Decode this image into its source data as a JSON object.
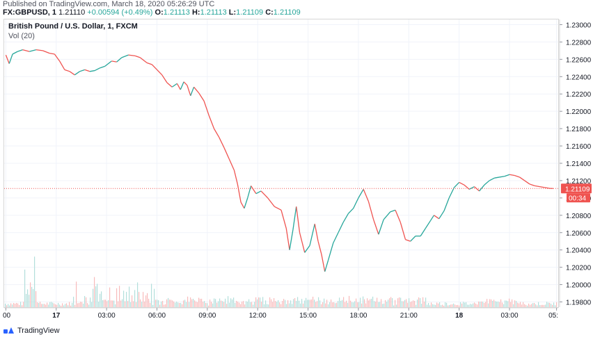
{
  "header": {
    "published": "Published on TradingView.com, March 18, 2020 05:26:29 UTC",
    "symbol": "FX:GBPUSD, 1",
    "last": "1.21110",
    "change": "+0.00594 (+0.49%)",
    "o_label": "O:",
    "o_value": "1.21113",
    "h_label": "H:",
    "h_value": "1.21113",
    "l_label": "L:",
    "l_value": "1.21109",
    "c_label": "C:",
    "c_value": "1.21109"
  },
  "legend": {
    "title": "British Pound / U.S. Dollar, 1, FXCM",
    "volume": "Vol (20)"
  },
  "footer": {
    "brand": "TradingView"
  },
  "colors": {
    "up": "#26a69a",
    "down": "#ef5350",
    "vol_up": "#b2dfdb",
    "vol_down": "#f8bbbb",
    "price_line": "#ef5350",
    "countdown_bg": "#ef5350"
  },
  "chart_data": {
    "type": "line",
    "y_ticks": [
      "1.23000",
      "1.22800",
      "1.22600",
      "1.22400",
      "1.22200",
      "1.22000",
      "1.21800",
      "1.21600",
      "1.21400",
      "1.21200",
      "1.21000",
      "1.20800",
      "1.20600",
      "1.20400",
      "1.20200",
      "1.20000",
      "1.19800"
    ],
    "y_tick_values": [
      1.23,
      1.228,
      1.226,
      1.224,
      1.222,
      1.22,
      1.218,
      1.216,
      1.214,
      1.212,
      1.21,
      1.208,
      1.206,
      1.204,
      1.202,
      1.2,
      1.198
    ],
    "ylim": [
      1.1974,
      1.2306
    ],
    "x_ticks": [
      "00",
      "17",
      "03:00",
      "06:00",
      "09:00",
      "12:00",
      "15:00",
      "18:00",
      "21:00",
      "18",
      "03:00",
      "05:"
    ],
    "x_tick_hours": [
      0,
      3,
      6,
      9,
      12,
      15,
      18,
      21,
      24,
      27,
      29.8
    ],
    "x_tick_bold": [
      false,
      true,
      false,
      false,
      false,
      false,
      false,
      false,
      false,
      true,
      false,
      false
    ],
    "xlim": [
      -3.1,
      29.9
    ],
    "x_first_tick_hour": -3,
    "current_price_label": "1.21109",
    "current_price": 1.21109,
    "countdown": "00:34",
    "series": [
      {
        "values": [
          [
            -3.0,
            1.2265
          ],
          [
            -2.8,
            1.2255
          ],
          [
            -2.6,
            1.2266
          ],
          [
            -2.3,
            1.2269
          ],
          [
            -2.0,
            1.2271
          ],
          [
            -1.6,
            1.2269
          ],
          [
            -1.2,
            1.2271
          ],
          [
            -0.8,
            1.227
          ],
          [
            -0.4,
            1.2267
          ],
          [
            -0.1,
            1.2266
          ],
          [
            0.2,
            1.2258
          ],
          [
            0.5,
            1.2248
          ],
          [
            0.8,
            1.2246
          ],
          [
            1.1,
            1.2242
          ],
          [
            1.4,
            1.2246
          ],
          [
            1.7,
            1.2248
          ],
          [
            2.0,
            1.2246
          ],
          [
            2.3,
            1.2247
          ],
          [
            2.6,
            1.225
          ],
          [
            2.9,
            1.2252
          ],
          [
            3.3,
            1.2258
          ],
          [
            3.6,
            1.2257
          ],
          [
            3.9,
            1.2262
          ],
          [
            4.3,
            1.2265
          ],
          [
            4.7,
            1.2264
          ],
          [
            5.0,
            1.2262
          ],
          [
            5.4,
            1.2256
          ],
          [
            5.7,
            1.2254
          ],
          [
            6.0,
            1.2248
          ],
          [
            6.3,
            1.2242
          ],
          [
            6.6,
            1.2233
          ],
          [
            6.9,
            1.2228
          ],
          [
            7.2,
            1.2232
          ],
          [
            7.4,
            1.2225
          ],
          [
            7.6,
            1.2234
          ],
          [
            7.8,
            1.223
          ],
          [
            8.0,
            1.2218
          ],
          [
            8.2,
            1.2228
          ],
          [
            8.5,
            1.2221
          ],
          [
            8.8,
            1.2212
          ],
          [
            9.1,
            1.2195
          ],
          [
            9.4,
            1.218
          ],
          [
            9.7,
            1.217
          ],
          [
            10.0,
            1.2158
          ],
          [
            10.3,
            1.2145
          ],
          [
            10.6,
            1.2132
          ],
          [
            10.8,
            1.2116
          ],
          [
            11.0,
            1.2095
          ],
          [
            11.2,
            1.2088
          ],
          [
            11.4,
            1.21
          ],
          [
            11.6,
            1.2114
          ],
          [
            11.9,
            1.2105
          ],
          [
            12.2,
            1.2108
          ],
          [
            12.6,
            1.21
          ],
          [
            13.0,
            1.209
          ],
          [
            13.4,
            1.2086
          ],
          [
            13.7,
            1.2065
          ],
          [
            13.9,
            1.204
          ],
          [
            14.1,
            1.2063
          ],
          [
            14.3,
            1.209
          ],
          [
            14.5,
            1.206
          ],
          [
            14.8,
            1.2037
          ],
          [
            15.1,
            1.2045
          ],
          [
            15.4,
            1.207
          ],
          [
            15.6,
            1.205
          ],
          [
            15.8,
            1.2035
          ],
          [
            16.0,
            1.2015
          ],
          [
            16.2,
            1.2028
          ],
          [
            16.5,
            1.2048
          ],
          [
            16.8,
            1.206
          ],
          [
            17.1,
            1.2072
          ],
          [
            17.4,
            1.2082
          ],
          [
            17.7,
            1.2088
          ],
          [
            18.0,
            1.21
          ],
          [
            18.3,
            1.211
          ],
          [
            18.6,
            1.2096
          ],
          [
            18.9,
            1.2075
          ],
          [
            19.2,
            1.2058
          ],
          [
            19.5,
            1.2075
          ],
          [
            19.9,
            1.2084
          ],
          [
            20.2,
            1.2086
          ],
          [
            20.5,
            1.2072
          ],
          [
            20.8,
            1.2052
          ],
          [
            21.1,
            1.205
          ],
          [
            21.4,
            1.2056
          ],
          [
            21.7,
            1.2056
          ],
          [
            22.0,
            1.2065
          ],
          [
            22.3,
            1.2074
          ],
          [
            22.5,
            1.208
          ],
          [
            22.8,
            1.2076
          ],
          [
            23.1,
            1.2085
          ],
          [
            23.4,
            1.21
          ],
          [
            23.7,
            1.2112
          ],
          [
            24.0,
            1.2118
          ],
          [
            24.3,
            1.2115
          ],
          [
            24.6,
            1.211
          ],
          [
            24.9,
            1.2113
          ],
          [
            25.2,
            1.2108
          ],
          [
            25.5,
            1.2115
          ],
          [
            25.8,
            1.212
          ],
          [
            26.1,
            1.2123
          ],
          [
            26.4,
            1.2124
          ],
          [
            26.7,
            1.2125
          ],
          [
            27.0,
            1.2127
          ],
          [
            27.3,
            1.2126
          ],
          [
            27.6,
            1.2124
          ],
          [
            27.9,
            1.212
          ],
          [
            28.2,
            1.2116
          ],
          [
            28.5,
            1.2114
          ],
          [
            28.8,
            1.2113
          ],
          [
            29.1,
            1.2112
          ],
          [
            29.4,
            1.2111
          ],
          [
            29.6,
            1.21109
          ]
        ]
      }
    ]
  }
}
